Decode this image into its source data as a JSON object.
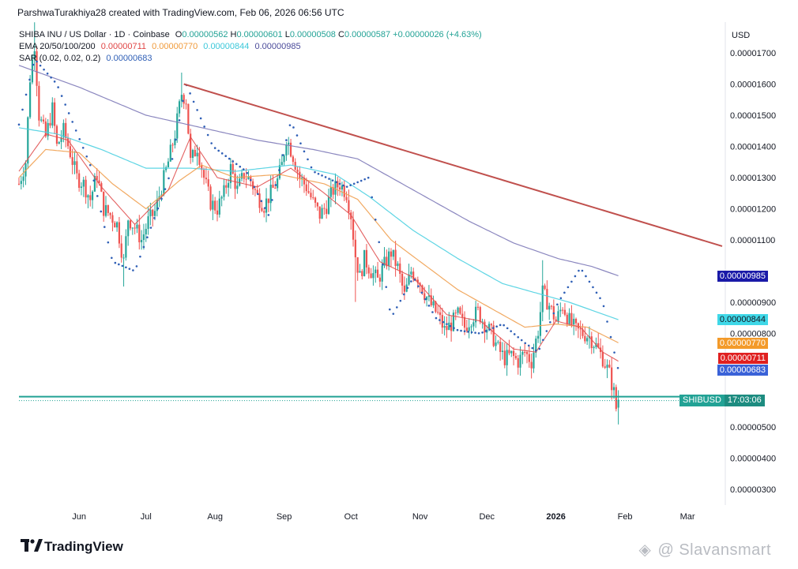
{
  "header": {
    "author_line": "ParshwaTurakhiya28 created with TradingView.com, Feb 06, 2026 06:56 UTC"
  },
  "legend": {
    "symbol": "SHIBA INU / US Dollar · 1D · Coinbase",
    "o_label": "O",
    "o_value": "0.00000562",
    "h_label": "H",
    "h_value": "0.00000601",
    "l_label": "L",
    "l_value": "0.00000508",
    "c_label": "C",
    "c_value": "0.00000587",
    "change": "+0.00000026 (+4.63%)",
    "ema_label": "EMA 20/50/100/200",
    "ema20": "0.00000711",
    "ema50": "0.00000770",
    "ema100": "0.00000844",
    "ema200": "0.00000985",
    "sar_label": "SAR (0.02, 0.02, 0.2)",
    "sar": "0.00000683"
  },
  "price_labels": {
    "ema200": "0.00000985",
    "ema100": "0.00000844",
    "ema50": "0.00000770",
    "ema20": "0.00000711",
    "sar": "0.00000683",
    "symbol": "SHIBUSD",
    "countdown": "17:03:06"
  },
  "colors": {
    "up": "#26a69a",
    "down": "#ef5350",
    "ema20": "#e05050",
    "ema50": "#f0a050",
    "ema100": "#4dd0e1",
    "ema200": "#7e7ab8",
    "sar": "#2f5fb6",
    "trendline": "#c0504d",
    "price_line": "#22a295"
  },
  "watermark": {
    "brand": "TradingView",
    "author": "@ Slavansmart"
  },
  "chart_data": {
    "type": "candlestick",
    "title": "SHIBA INU / US Dollar · 1D · Coinbase",
    "currency_label": "USD",
    "y_ticks": [
      "0.00001700",
      "0.00001600",
      "0.00001500",
      "0.00001400",
      "0.00001300",
      "0.00001200",
      "0.00001100",
      "0.00000900",
      "0.00000800",
      "0.00000500",
      "0.00000400",
      "0.00000300"
    ],
    "y_tick_values": [
      17.0,
      16.0,
      15.0,
      14.0,
      13.0,
      12.0,
      11.0,
      9.0,
      8.0,
      5.0,
      4.0,
      3.0
    ],
    "y_unit_scale": 1e-06,
    "ylim": [
      2.3,
      17.8
    ],
    "x_ticks": [
      "Jun",
      "Jul",
      "Aug",
      "Sep",
      "Oct",
      "Nov",
      "Dec",
      "2026",
      "Feb",
      "Mar"
    ],
    "x_tick_days": [
      0,
      30,
      61,
      92,
      122,
      153,
      183,
      214,
      245,
      273
    ],
    "x_range_days": [
      -27,
      290
    ],
    "last_price": 5.87,
    "closes_series_keypoints": [
      [
        -27,
        12.8
      ],
      [
        -24,
        13.5
      ],
      [
        -22,
        16.2
      ],
      [
        -20,
        17.3
      ],
      [
        -18,
        15.0
      ],
      [
        -15,
        14.3
      ],
      [
        -12,
        15.2
      ],
      [
        -10,
        14.0
      ],
      [
        -7,
        14.5
      ],
      [
        -4,
        13.8
      ],
      [
        -1,
        13.0
      ],
      [
        2,
        12.8
      ],
      [
        5,
        12.3
      ],
      [
        8,
        13.1
      ],
      [
        11,
        12.0
      ],
      [
        14,
        11.8
      ],
      [
        17,
        11.5
      ],
      [
        20,
        10.3
      ],
      [
        22,
        11.7
      ],
      [
        25,
        11.4
      ],
      [
        28,
        11.0
      ],
      [
        31,
        11.6
      ],
      [
        34,
        11.9
      ],
      [
        37,
        12.7
      ],
      [
        40,
        13.5
      ],
      [
        43,
        14.4
      ],
      [
        46,
        15.7
      ],
      [
        48,
        15.5
      ],
      [
        50,
        13.5
      ],
      [
        53,
        14.0
      ],
      [
        56,
        13.0
      ],
      [
        59,
        12.2
      ],
      [
        62,
        12.0
      ],
      [
        65,
        12.5
      ],
      [
        68,
        13.3
      ],
      [
        71,
        12.6
      ],
      [
        74,
        13.1
      ],
      [
        77,
        12.9
      ],
      [
        80,
        12.4
      ],
      [
        83,
        12.1
      ],
      [
        86,
        12.5
      ],
      [
        89,
        12.9
      ],
      [
        91,
        13.4
      ],
      [
        93,
        14.3
      ],
      [
        96,
        13.7
      ],
      [
        99,
        13.0
      ],
      [
        102,
        12.7
      ],
      [
        105,
        12.2
      ],
      [
        108,
        11.8
      ],
      [
        111,
        12.1
      ],
      [
        114,
        12.6
      ],
      [
        117,
        12.8
      ],
      [
        120,
        12.5
      ],
      [
        122,
        11.8
      ],
      [
        124,
        10.5
      ],
      [
        126,
        9.8
      ],
      [
        128,
        10.4
      ],
      [
        131,
        10.0
      ],
      [
        134,
        9.7
      ],
      [
        137,
        10.2
      ],
      [
        140,
        10.6
      ],
      [
        143,
        10.1
      ],
      [
        146,
        9.2
      ],
      [
        149,
        10.0
      ],
      [
        152,
        9.8
      ],
      [
        155,
        9.3
      ],
      [
        158,
        8.9
      ],
      [
        161,
        8.6
      ],
      [
        164,
        8.1
      ],
      [
        167,
        8.3
      ],
      [
        170,
        8.6
      ],
      [
        173,
        8.2
      ],
      [
        176,
        8.5
      ],
      [
        179,
        8.7
      ],
      [
        182,
        8.3
      ],
      [
        185,
        8.0
      ],
      [
        188,
        7.5
      ],
      [
        191,
        7.2
      ],
      [
        194,
        7.3
      ],
      [
        197,
        7.1
      ],
      [
        200,
        7.4
      ],
      [
        203,
        7.1
      ],
      [
        206,
        8.1
      ],
      [
        208,
        9.3
      ],
      [
        211,
        8.9
      ],
      [
        214,
        8.4
      ],
      [
        217,
        8.9
      ],
      [
        220,
        8.4
      ],
      [
        223,
        8.1
      ],
      [
        226,
        8.0
      ],
      [
        229,
        7.9
      ],
      [
        232,
        7.6
      ],
      [
        235,
        7.2
      ],
      [
        238,
        6.7
      ],
      [
        240,
        6.1
      ],
      [
        241,
        5.6
      ],
      [
        242,
        5.87
      ]
    ],
    "ema20_keypoints": [
      [
        -27,
        13.2
      ],
      [
        -15,
        14.4
      ],
      [
        -5,
        14.2
      ],
      [
        10,
        12.7
      ],
      [
        25,
        11.5
      ],
      [
        40,
        12.6
      ],
      [
        50,
        14.3
      ],
      [
        62,
        13.0
      ],
      [
        80,
        12.7
      ],
      [
        95,
        13.3
      ],
      [
        110,
        12.5
      ],
      [
        122,
        11.8
      ],
      [
        135,
        10.3
      ],
      [
        150,
        9.8
      ],
      [
        165,
        8.6
      ],
      [
        180,
        8.4
      ],
      [
        195,
        7.5
      ],
      [
        205,
        7.4
      ],
      [
        214,
        8.4
      ],
      [
        225,
        8.2
      ],
      [
        235,
        7.4
      ],
      [
        242,
        7.11
      ]
    ],
    "ema50_keypoints": [
      [
        -27,
        13.0
      ],
      [
        -15,
        13.9
      ],
      [
        0,
        13.8
      ],
      [
        15,
        12.8
      ],
      [
        30,
        12.0
      ],
      [
        45,
        12.9
      ],
      [
        55,
        13.4
      ],
      [
        70,
        13.0
      ],
      [
        90,
        13.1
      ],
      [
        110,
        12.8
      ],
      [
        125,
        12.3
      ],
      [
        140,
        11.0
      ],
      [
        155,
        10.2
      ],
      [
        170,
        9.4
      ],
      [
        185,
        8.8
      ],
      [
        200,
        8.2
      ],
      [
        214,
        8.3
      ],
      [
        228,
        8.2
      ],
      [
        242,
        7.7
      ]
    ],
    "ema100_keypoints": [
      [
        -27,
        14.6
      ],
      [
        -10,
        14.4
      ],
      [
        10,
        13.9
      ],
      [
        30,
        13.3
      ],
      [
        50,
        13.3
      ],
      [
        70,
        13.2
      ],
      [
        95,
        13.4
      ],
      [
        115,
        13.1
      ],
      [
        130,
        12.4
      ],
      [
        150,
        11.3
      ],
      [
        170,
        10.4
      ],
      [
        190,
        9.6
      ],
      [
        205,
        9.3
      ],
      [
        220,
        9.0
      ],
      [
        242,
        8.44
      ]
    ],
    "ema200_keypoints": [
      [
        -27,
        16.6
      ],
      [
        0,
        15.9
      ],
      [
        30,
        15.0
      ],
      [
        55,
        14.6
      ],
      [
        80,
        14.2
      ],
      [
        105,
        13.9
      ],
      [
        125,
        13.6
      ],
      [
        150,
        12.6
      ],
      [
        175,
        11.6
      ],
      [
        195,
        10.9
      ],
      [
        215,
        10.4
      ],
      [
        230,
        10.15
      ],
      [
        242,
        9.85
      ]
    ],
    "trendline": [
      [
        47,
        16.0
      ],
      [
        290,
        10.8
      ]
    ],
    "sar_keypoints": [
      [
        -27,
        14.7
      ],
      [
        -20,
        16.8
      ],
      [
        -10,
        16.0
      ],
      [
        5,
        13.4
      ],
      [
        15,
        10.3
      ],
      [
        25,
        10.0
      ],
      [
        40,
        12.9
      ],
      [
        48,
        16.0
      ],
      [
        60,
        14.0
      ],
      [
        75,
        13.2
      ],
      [
        85,
        11.8
      ],
      [
        95,
        14.8
      ],
      [
        105,
        13.2
      ],
      [
        120,
        12.7
      ],
      [
        130,
        13.0
      ],
      [
        140,
        8.5
      ],
      [
        150,
        9.8
      ],
      [
        160,
        8.5
      ],
      [
        170,
        8.1
      ],
      [
        180,
        8.0
      ],
      [
        190,
        8.3
      ],
      [
        200,
        7.7
      ],
      [
        206,
        7.4
      ],
      [
        215,
        9.0
      ],
      [
        225,
        10.1
      ],
      [
        235,
        9.0
      ],
      [
        242,
        6.83
      ]
    ]
  }
}
